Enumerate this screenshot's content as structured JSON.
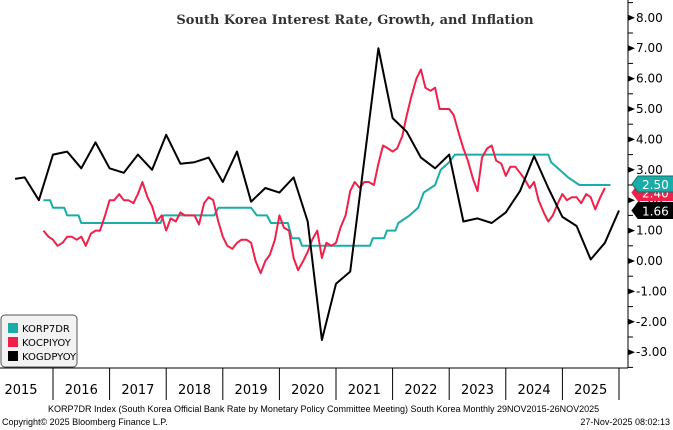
{
  "chart_data": {
    "type": "line",
    "title": "South Korea Interest Rate, Growth, and Inflation",
    "xlabel": "",
    "ylabel": "",
    "ylim": [
      -3.5,
      8.5
    ],
    "y_ticks": [
      "8.00",
      "7.00",
      "6.00",
      "5.00",
      "4.00",
      "3.00",
      "2.00",
      "1.00",
      "0.00",
      "-1.00",
      "-2.00",
      "-3.00"
    ],
    "y_tick_values": [
      8,
      7,
      6,
      5,
      4,
      3,
      2,
      1,
      0,
      -1,
      -2,
      -3
    ],
    "x_range": [
      2015.83,
      2026.12
    ],
    "x_ticks": [
      "2015",
      "2016",
      "2017",
      "2018",
      "2019",
      "2020",
      "2021",
      "2022",
      "2023",
      "2024",
      "2025"
    ],
    "grid": false,
    "legend_position": "bottom-left",
    "series": [
      {
        "name": "KORP7DR",
        "color": "#1aada8",
        "last_value_label": "2.50",
        "points": [
          [
            2015.83,
            2.0
          ],
          [
            2015.95,
            2.0
          ],
          [
            2016.0,
            1.75
          ],
          [
            2016.2,
            1.75
          ],
          [
            2016.25,
            1.5
          ],
          [
            2016.45,
            1.5
          ],
          [
            2016.5,
            1.25
          ],
          [
            2017.9,
            1.25
          ],
          [
            2017.95,
            1.5
          ],
          [
            2018.85,
            1.5
          ],
          [
            2018.92,
            1.75
          ],
          [
            2019.5,
            1.75
          ],
          [
            2019.6,
            1.5
          ],
          [
            2019.78,
            1.5
          ],
          [
            2019.85,
            1.25
          ],
          [
            2020.15,
            1.25
          ],
          [
            2020.22,
            0.75
          ],
          [
            2020.35,
            0.75
          ],
          [
            2020.4,
            0.5
          ],
          [
            2021.6,
            0.5
          ],
          [
            2021.65,
            0.75
          ],
          [
            2021.85,
            0.75
          ],
          [
            2021.9,
            1.0
          ],
          [
            2022.05,
            1.0
          ],
          [
            2022.1,
            1.25
          ],
          [
            2022.3,
            1.5
          ],
          [
            2022.45,
            1.75
          ],
          [
            2022.55,
            2.25
          ],
          [
            2022.75,
            2.5
          ],
          [
            2022.85,
            3.0
          ],
          [
            2023.0,
            3.25
          ],
          [
            2023.1,
            3.5
          ],
          [
            2024.75,
            3.5
          ],
          [
            2024.8,
            3.25
          ],
          [
            2024.95,
            3.0
          ],
          [
            2025.1,
            2.75
          ],
          [
            2025.3,
            2.5
          ],
          [
            2025.85,
            2.5
          ]
        ]
      },
      {
        "name": "KOCPIYOY",
        "color": "#f0204a",
        "last_value_label": "2.40",
        "points": [
          [
            2015.83,
            1.0
          ],
          [
            2015.92,
            0.8
          ],
          [
            2016.0,
            0.7
          ],
          [
            2016.08,
            0.5
          ],
          [
            2016.17,
            0.6
          ],
          [
            2016.25,
            0.8
          ],
          [
            2016.33,
            0.8
          ],
          [
            2016.42,
            0.7
          ],
          [
            2016.5,
            0.8
          ],
          [
            2016.58,
            0.5
          ],
          [
            2016.67,
            0.9
          ],
          [
            2016.75,
            1.0
          ],
          [
            2016.83,
            1.0
          ],
          [
            2016.92,
            1.5
          ],
          [
            2017.0,
            2.0
          ],
          [
            2017.08,
            2.0
          ],
          [
            2017.17,
            2.2
          ],
          [
            2017.25,
            2.0
          ],
          [
            2017.33,
            2.0
          ],
          [
            2017.42,
            1.9
          ],
          [
            2017.5,
            2.2
          ],
          [
            2017.58,
            2.6
          ],
          [
            2017.67,
            2.1
          ],
          [
            2017.75,
            1.8
          ],
          [
            2017.83,
            1.3
          ],
          [
            2017.92,
            1.5
          ],
          [
            2018.0,
            1.0
          ],
          [
            2018.08,
            1.4
          ],
          [
            2018.17,
            1.3
          ],
          [
            2018.25,
            1.6
          ],
          [
            2018.33,
            1.5
          ],
          [
            2018.42,
            1.5
          ],
          [
            2018.5,
            1.5
          ],
          [
            2018.58,
            1.2
          ],
          [
            2018.67,
            1.9
          ],
          [
            2018.75,
            2.1
          ],
          [
            2018.83,
            2.0
          ],
          [
            2018.92,
            1.3
          ],
          [
            2019.0,
            0.8
          ],
          [
            2019.08,
            0.5
          ],
          [
            2019.17,
            0.4
          ],
          [
            2019.25,
            0.6
          ],
          [
            2019.33,
            0.7
          ],
          [
            2019.42,
            0.7
          ],
          [
            2019.5,
            0.6
          ],
          [
            2019.58,
            0.0
          ],
          [
            2019.67,
            -0.4
          ],
          [
            2019.75,
            0.0
          ],
          [
            2019.83,
            0.2
          ],
          [
            2019.92,
            0.7
          ],
          [
            2020.0,
            1.5
          ],
          [
            2020.08,
            1.1
          ],
          [
            2020.17,
            1.0
          ],
          [
            2020.25,
            0.1
          ],
          [
            2020.33,
            -0.3
          ],
          [
            2020.42,
            0.0
          ],
          [
            2020.5,
            0.3
          ],
          [
            2020.58,
            0.7
          ],
          [
            2020.67,
            1.0
          ],
          [
            2020.75,
            0.1
          ],
          [
            2020.83,
            0.6
          ],
          [
            2020.92,
            0.5
          ],
          [
            2021.0,
            0.6
          ],
          [
            2021.08,
            1.1
          ],
          [
            2021.17,
            1.5
          ],
          [
            2021.25,
            2.3
          ],
          [
            2021.33,
            2.6
          ],
          [
            2021.42,
            2.4
          ],
          [
            2021.5,
            2.6
          ],
          [
            2021.58,
            2.6
          ],
          [
            2021.67,
            2.5
          ],
          [
            2021.75,
            3.2
          ],
          [
            2021.83,
            3.8
          ],
          [
            2021.92,
            3.7
          ],
          [
            2022.0,
            3.6
          ],
          [
            2022.08,
            3.7
          ],
          [
            2022.17,
            4.1
          ],
          [
            2022.25,
            4.8
          ],
          [
            2022.33,
            5.4
          ],
          [
            2022.42,
            6.0
          ],
          [
            2022.5,
            6.3
          ],
          [
            2022.58,
            5.7
          ],
          [
            2022.67,
            5.6
          ],
          [
            2022.75,
            5.7
          ],
          [
            2022.83,
            5.0
          ],
          [
            2022.92,
            5.0
          ],
          [
            2023.0,
            5.0
          ],
          [
            2023.08,
            4.8
          ],
          [
            2023.17,
            4.2
          ],
          [
            2023.25,
            3.7
          ],
          [
            2023.33,
            3.3
          ],
          [
            2023.42,
            2.7
          ],
          [
            2023.5,
            2.3
          ],
          [
            2023.58,
            3.4
          ],
          [
            2023.67,
            3.7
          ],
          [
            2023.75,
            3.8
          ],
          [
            2023.83,
            3.3
          ],
          [
            2023.92,
            3.2
          ],
          [
            2024.0,
            2.8
          ],
          [
            2024.08,
            3.1
          ],
          [
            2024.17,
            3.1
          ],
          [
            2024.25,
            2.9
          ],
          [
            2024.33,
            2.7
          ],
          [
            2024.42,
            2.4
          ],
          [
            2024.5,
            2.6
          ],
          [
            2024.58,
            2.0
          ],
          [
            2024.67,
            1.6
          ],
          [
            2024.75,
            1.3
          ],
          [
            2024.83,
            1.5
          ],
          [
            2024.92,
            1.9
          ],
          [
            2025.0,
            2.2
          ],
          [
            2025.08,
            2.0
          ],
          [
            2025.17,
            2.1
          ],
          [
            2025.25,
            2.1
          ],
          [
            2025.33,
            1.9
          ],
          [
            2025.42,
            2.2
          ],
          [
            2025.5,
            2.1
          ],
          [
            2025.58,
            1.7
          ],
          [
            2025.67,
            2.1
          ],
          [
            2025.75,
            2.4
          ]
        ]
      },
      {
        "name": "KOGDPYOY",
        "color": "#000000",
        "last_value_label": "1.66",
        "points": [
          [
            2015.83,
            2.7
          ],
          [
            2016.0,
            2.75
          ],
          [
            2016.25,
            2.0
          ],
          [
            2016.5,
            3.5
          ],
          [
            2016.75,
            3.6
          ],
          [
            2017.0,
            3.05
          ],
          [
            2017.25,
            3.9
          ],
          [
            2017.5,
            3.05
          ],
          [
            2017.75,
            2.9
          ],
          [
            2018.0,
            3.5
          ],
          [
            2018.25,
            3.0
          ],
          [
            2018.5,
            4.15
          ],
          [
            2018.75,
            3.2
          ],
          [
            2019.0,
            3.25
          ],
          [
            2019.25,
            3.4
          ],
          [
            2019.5,
            2.6
          ],
          [
            2019.75,
            3.6
          ],
          [
            2020.0,
            1.95
          ],
          [
            2020.25,
            2.4
          ],
          [
            2020.5,
            2.25
          ],
          [
            2020.75,
            2.75
          ],
          [
            2021.0,
            1.3
          ],
          [
            2021.25,
            -2.6
          ],
          [
            2021.5,
            -0.75
          ],
          [
            2021.75,
            -0.35
          ],
          [
            2022.25,
            7.0
          ],
          [
            2022.5,
            4.7
          ],
          [
            2022.75,
            4.25
          ],
          [
            2023.0,
            3.4
          ],
          [
            2023.25,
            3.05
          ],
          [
            2023.5,
            3.5
          ],
          [
            2023.75,
            1.3
          ],
          [
            2024.0,
            1.4
          ],
          [
            2024.25,
            1.25
          ],
          [
            2024.5,
            1.6
          ],
          [
            2024.75,
            2.3
          ],
          [
            2025.0,
            3.45
          ],
          [
            2025.25,
            2.4
          ],
          [
            2025.5,
            1.45
          ],
          [
            2025.75,
            1.15
          ],
          [
            2026.0,
            0.05
          ],
          [
            2026.25,
            0.6
          ],
          [
            2026.5,
            1.66
          ]
        ]
      }
    ]
  },
  "legend": {
    "items": [
      "KORP7DR",
      "KOCPIYOY",
      "KOGDPYOY"
    ]
  },
  "footer": {
    "description": "KORP7DR Index (South Korea Official Bank Rate by Monetary Policy Committee Meeting) South Korea Monthly 29NOV2015-26NOV2025",
    "copyright": "Copyright© 2025 Bloomberg Finance L.P.",
    "timestamp": "27-Nov-2025 08:02:13"
  }
}
